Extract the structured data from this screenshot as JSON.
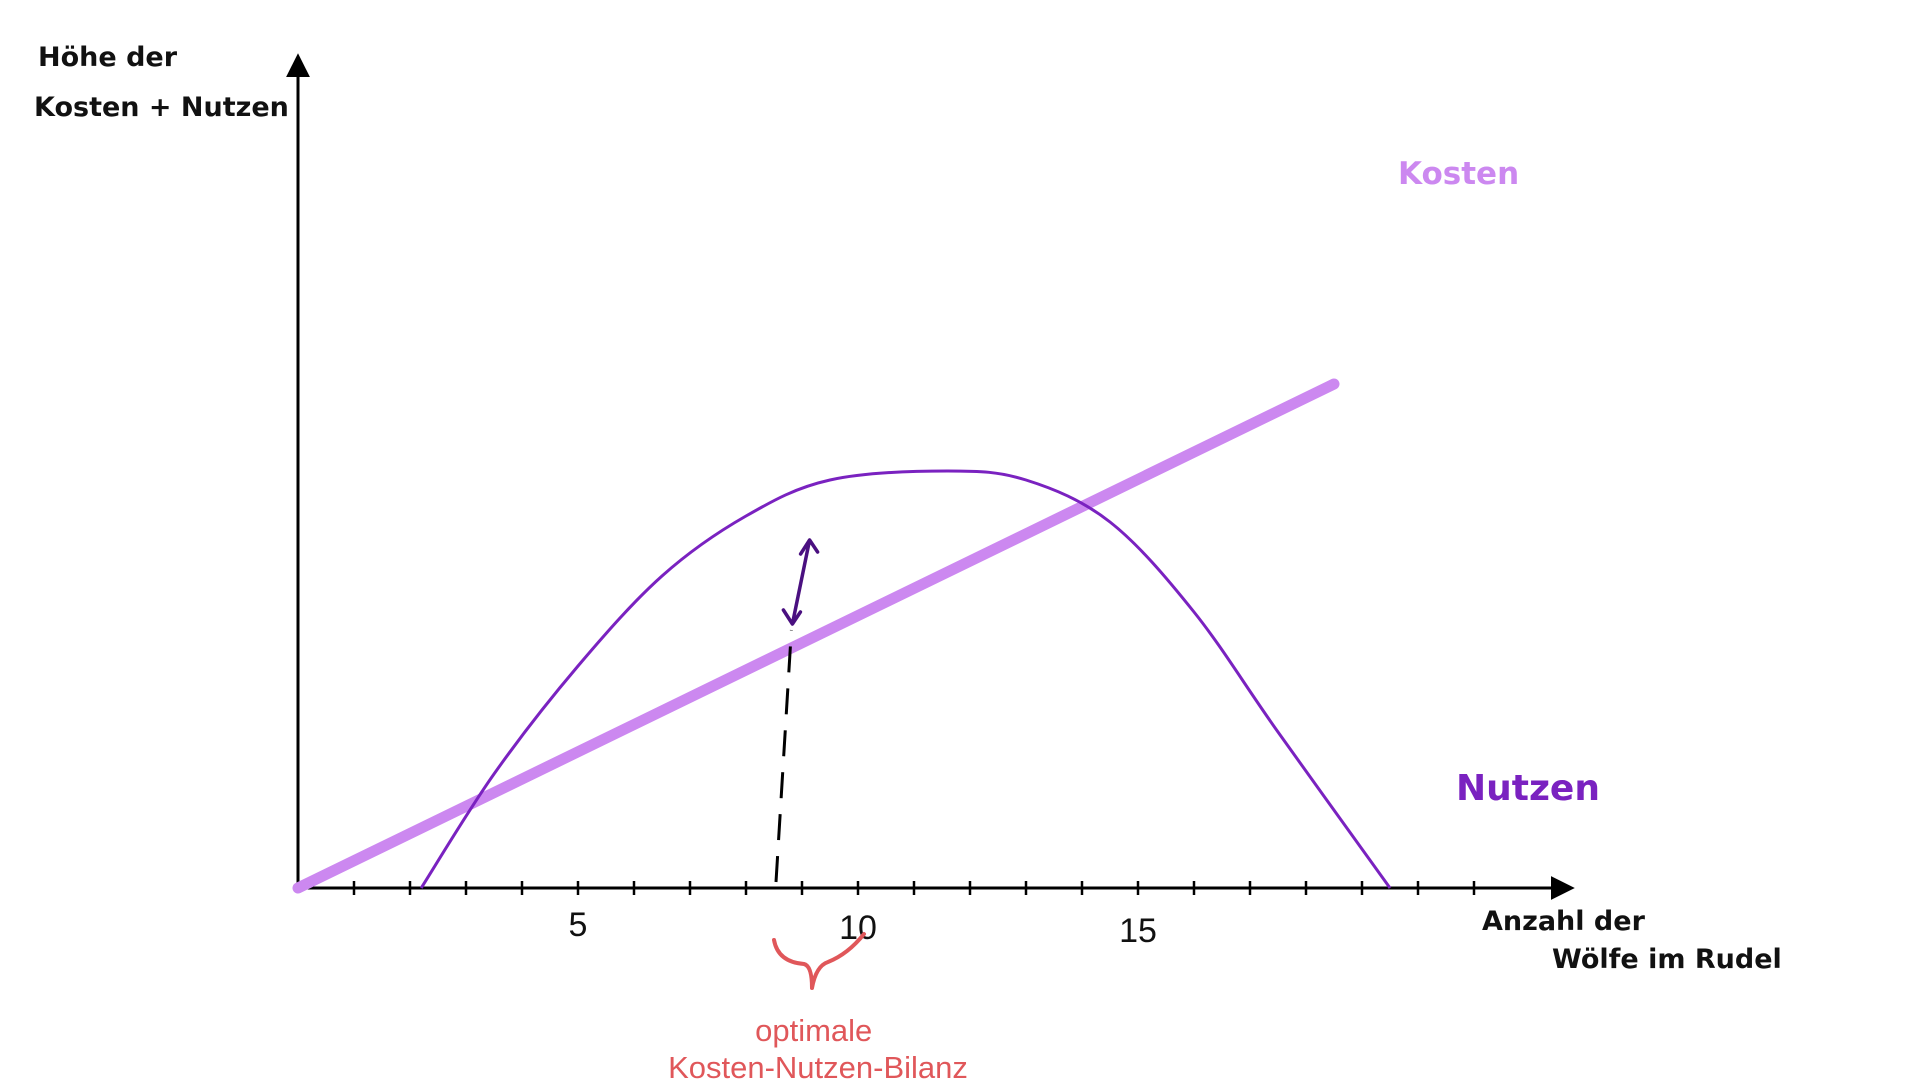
{
  "chart_data": {
    "type": "line",
    "title": "",
    "ylabel_lines": [
      "Höhe der",
      "Kosten + Nutzen"
    ],
    "xlabel_lines": [
      "Anzahl der",
      "Wölfe im Rudel"
    ],
    "x_ticks": [
      5,
      10,
      15
    ],
    "xlim": [
      0,
      21.5
    ],
    "ylim": [
      0,
      10
    ],
    "grid": false,
    "series": [
      {
        "name": "Kosten",
        "color": "#cc88f0",
        "x": [
          0,
          18.5
        ],
        "y": [
          0,
          8.4
        ]
      },
      {
        "name": "Nutzen",
        "color": "#7a22c0",
        "x": [
          2.2,
          3.5,
          5,
          6.5,
          8,
          9.5,
          11.6,
          13,
          14.5,
          16,
          17.5,
          19.5
        ],
        "y": [
          0,
          1.9,
          3.7,
          5.2,
          6.2,
          6.8,
          6.95,
          6.8,
          6.1,
          4.6,
          2.6,
          0
        ]
      }
    ],
    "annotations": {
      "optimum_x": 8.5,
      "arrow": {
        "x_from": 8.9,
        "y_from": 4.5,
        "x_to": 9.1,
        "y_to": 6.0,
        "color": "#4a1080"
      },
      "label_lines": [
        "optimale",
        "Kosten-Nutzen-Bilanz"
      ],
      "label_color": "#e0575a"
    }
  }
}
